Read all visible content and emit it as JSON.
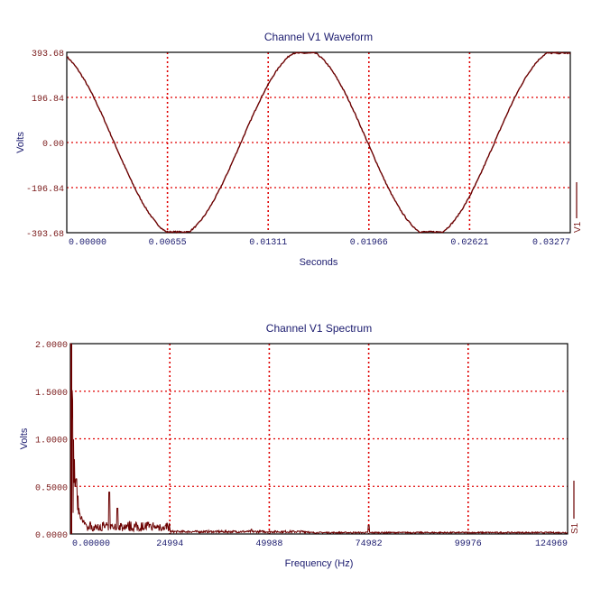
{
  "chart_data": [
    {
      "type": "line",
      "title": "Channel V1 Waveform",
      "xlabel": "Seconds",
      "ylabel": "Volts",
      "xlim": [
        0,
        0.03277
      ],
      "ylim": [
        -393.68,
        393.68
      ],
      "x_ticks": [
        "0.00000",
        "0.00655",
        "0.01311",
        "0.01966",
        "0.02621",
        "0.03277"
      ],
      "y_ticks": [
        "393.68",
        "196.84",
        "0.00",
        "-196.84",
        "-393.68"
      ],
      "grid": true,
      "legend": {
        "label": "V1",
        "position": "right"
      },
      "series": [
        {
          "name": "V1",
          "color": "#6b0000",
          "shape": "clipped sine",
          "amplitude": 390,
          "period_s": 0.0165,
          "phase_peak_s": -0.00104,
          "zero_crossings_s": [
            0.00311,
            0.01136,
            0.01962,
            0.02787
          ]
        }
      ]
    },
    {
      "type": "line",
      "title": "Channel V1 Spectrum",
      "xlabel": "Frequency (Hz)",
      "ylabel": "Volts",
      "xlim": [
        0,
        124969
      ],
      "ylim": [
        0,
        2.0
      ],
      "x_ticks": [
        "0.00000",
        "24994",
        "49988",
        "74982",
        "99976",
        "124969"
      ],
      "y_ticks": [
        "2.0000",
        "1.5000",
        "1.0000",
        "0.5000",
        "0.0000"
      ],
      "grid": true,
      "legend": {
        "label": "S1",
        "position": "right"
      },
      "series": [
        {
          "name": "S1",
          "color": "#6b0000",
          "peaks": [
            [
              0,
              2.0
            ],
            [
              500,
              0.6
            ],
            [
              1200,
              0.5
            ],
            [
              9800,
              0.44
            ],
            [
              11800,
              0.27
            ],
            [
              20000,
              0.1
            ],
            [
              45500,
              0.05
            ],
            [
              75000,
              0.09
            ]
          ],
          "noise_floor": 0.03
        }
      ]
    }
  ]
}
